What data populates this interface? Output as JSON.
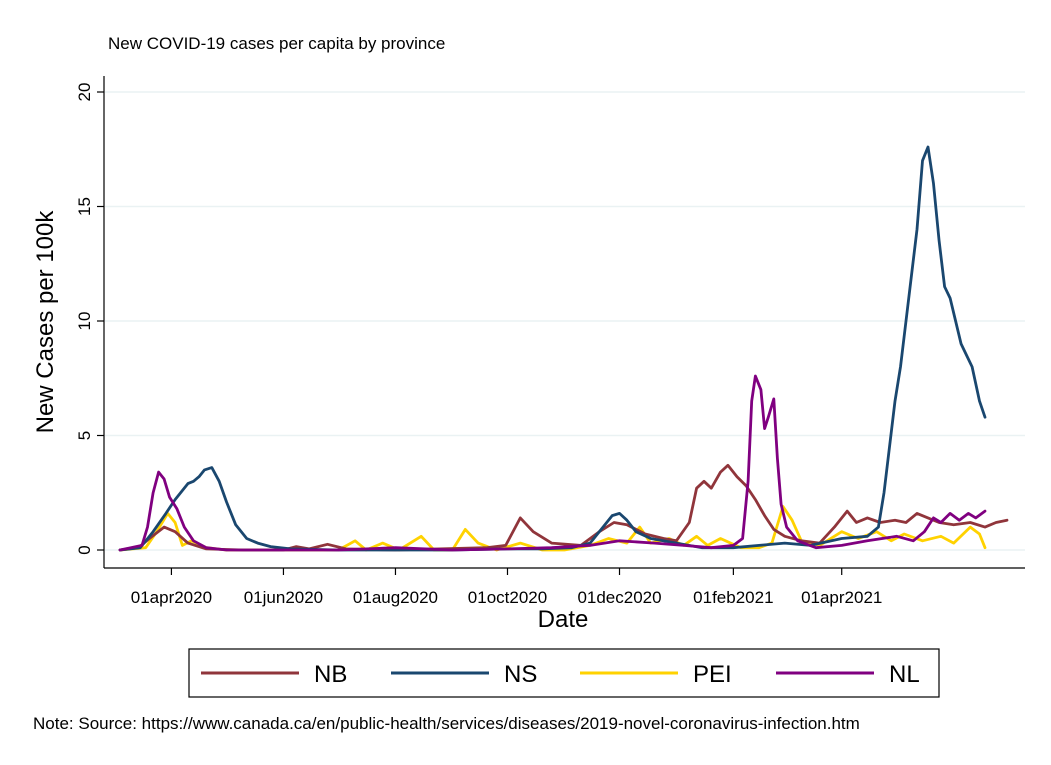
{
  "chart_data": {
    "type": "line",
    "title": "New COVID-19 cases per capita by province",
    "xlabel": "Date",
    "ylabel": "New Cases per 100k",
    "ylim": [
      0,
      20
    ],
    "y_ticks": [
      "0",
      "5",
      "10",
      "15",
      "20"
    ],
    "x_ticks": [
      "01apr2020",
      "01jun2020",
      "01aug2020",
      "01oct2020",
      "01dec2020",
      "01feb2021",
      "01apr2021"
    ],
    "x_range": [
      "2020-03-04",
      "2021-06-30"
    ],
    "grid": true,
    "legend_position": "bottom",
    "note": "Note: Source: https://www.canada.ca/en/public-health/services/diseases/2019-novel-coronavirus-infection.htm",
    "series": [
      {
        "name": "NB",
        "color": "#90353b",
        "points": [
          [
            "2020-03-04",
            0.0
          ],
          [
            "2020-03-14",
            0.1
          ],
          [
            "2020-03-20",
            0.5
          ],
          [
            "2020-03-28",
            1.0
          ],
          [
            "2020-04-03",
            0.8
          ],
          [
            "2020-04-10",
            0.3
          ],
          [
            "2020-04-20",
            0.05
          ],
          [
            "2020-05-10",
            0.0
          ],
          [
            "2020-06-01",
            0.0
          ],
          [
            "2020-06-08",
            0.15
          ],
          [
            "2020-06-15",
            0.05
          ],
          [
            "2020-06-25",
            0.25
          ],
          [
            "2020-07-05",
            0.05
          ],
          [
            "2020-08-01",
            0.0
          ],
          [
            "2020-08-25",
            0.05
          ],
          [
            "2020-09-20",
            0.1
          ],
          [
            "2020-09-30",
            0.2
          ],
          [
            "2020-10-08",
            1.4
          ],
          [
            "2020-10-15",
            0.8
          ],
          [
            "2020-10-25",
            0.3
          ],
          [
            "2020-11-10",
            0.2
          ],
          [
            "2020-11-20",
            0.8
          ],
          [
            "2020-11-28",
            1.2
          ],
          [
            "2020-12-05",
            1.1
          ],
          [
            "2020-12-15",
            0.7
          ],
          [
            "2020-12-25",
            0.5
          ],
          [
            "2021-01-01",
            0.4
          ],
          [
            "2021-01-08",
            1.2
          ],
          [
            "2021-01-12",
            2.7
          ],
          [
            "2021-01-16",
            3.0
          ],
          [
            "2021-01-20",
            2.7
          ],
          [
            "2021-01-25",
            3.4
          ],
          [
            "2021-01-29",
            3.7
          ],
          [
            "2021-02-03",
            3.2
          ],
          [
            "2021-02-08",
            2.8
          ],
          [
            "2021-02-13",
            2.2
          ],
          [
            "2021-02-18",
            1.5
          ],
          [
            "2021-02-23",
            0.9
          ],
          [
            "2021-03-01",
            0.6
          ],
          [
            "2021-03-10",
            0.4
          ],
          [
            "2021-03-20",
            0.3
          ],
          [
            "2021-03-28",
            1.0
          ],
          [
            "2021-04-04",
            1.7
          ],
          [
            "2021-04-09",
            1.2
          ],
          [
            "2021-04-15",
            1.4
          ],
          [
            "2021-04-22",
            1.2
          ],
          [
            "2021-04-30",
            1.3
          ],
          [
            "2021-05-06",
            1.2
          ],
          [
            "2021-05-12",
            1.6
          ],
          [
            "2021-05-18",
            1.4
          ],
          [
            "2021-05-24",
            1.2
          ],
          [
            "2021-06-01",
            1.1
          ],
          [
            "2021-06-10",
            1.2
          ],
          [
            "2021-06-18",
            1.0
          ],
          [
            "2021-06-24",
            1.2
          ],
          [
            "2021-06-30",
            1.3
          ]
        ]
      },
      {
        "name": "NS",
        "color": "#1a476f",
        "points": [
          [
            "2020-03-04",
            0.0
          ],
          [
            "2020-03-15",
            0.1
          ],
          [
            "2020-03-22",
            0.8
          ],
          [
            "2020-03-29",
            1.6
          ],
          [
            "2020-04-03",
            2.2
          ],
          [
            "2020-04-07",
            2.6
          ],
          [
            "2020-04-10",
            2.9
          ],
          [
            "2020-04-13",
            3.0
          ],
          [
            "2020-04-16",
            3.2
          ],
          [
            "2020-04-19",
            3.5
          ],
          [
            "2020-04-23",
            3.6
          ],
          [
            "2020-04-27",
            3.0
          ],
          [
            "2020-05-01",
            2.1
          ],
          [
            "2020-05-06",
            1.1
          ],
          [
            "2020-05-12",
            0.5
          ],
          [
            "2020-05-18",
            0.3
          ],
          [
            "2020-05-25",
            0.15
          ],
          [
            "2020-06-05",
            0.05
          ],
          [
            "2020-07-01",
            0.0
          ],
          [
            "2020-08-01",
            0.0
          ],
          [
            "2020-09-01",
            0.0
          ],
          [
            "2020-10-01",
            0.05
          ],
          [
            "2020-10-20",
            0.05
          ],
          [
            "2020-11-05",
            0.1
          ],
          [
            "2020-11-15",
            0.3
          ],
          [
            "2020-11-22",
            1.0
          ],
          [
            "2020-11-27",
            1.5
          ],
          [
            "2020-12-01",
            1.6
          ],
          [
            "2020-12-05",
            1.3
          ],
          [
            "2020-12-10",
            0.8
          ],
          [
            "2020-12-18",
            0.5
          ],
          [
            "2021-01-01",
            0.3
          ],
          [
            "2021-01-15",
            0.1
          ],
          [
            "2021-02-01",
            0.1
          ],
          [
            "2021-02-15",
            0.2
          ],
          [
            "2021-03-01",
            0.3
          ],
          [
            "2021-03-15",
            0.2
          ],
          [
            "2021-04-01",
            0.5
          ],
          [
            "2021-04-15",
            0.6
          ],
          [
            "2021-04-21",
            1.0
          ],
          [
            "2021-04-24",
            2.5
          ],
          [
            "2021-04-27",
            4.5
          ],
          [
            "2021-04-30",
            6.5
          ],
          [
            "2021-05-03",
            8.0
          ],
          [
            "2021-05-06",
            10.0
          ],
          [
            "2021-05-09",
            12.0
          ],
          [
            "2021-05-12",
            14.0
          ],
          [
            "2021-05-15",
            17.0
          ],
          [
            "2021-05-18",
            17.6
          ],
          [
            "2021-05-21",
            16.0
          ],
          [
            "2021-05-24",
            13.5
          ],
          [
            "2021-05-27",
            11.5
          ],
          [
            "2021-05-30",
            11.0
          ],
          [
            "2021-06-02",
            10.0
          ],
          [
            "2021-06-05",
            9.0
          ],
          [
            "2021-06-08",
            8.5
          ],
          [
            "2021-06-11",
            8.0
          ],
          [
            "2021-06-15",
            6.5
          ],
          [
            "2021-06-18",
            5.8
          ]
        ]
      },
      {
        "name": "PEI",
        "color": "#ffd200",
        "points": [
          [
            "2020-03-04",
            0.0
          ],
          [
            "2020-03-18",
            0.1
          ],
          [
            "2020-03-24",
            0.8
          ],
          [
            "2020-03-30",
            1.6
          ],
          [
            "2020-04-03",
            1.2
          ],
          [
            "2020-04-07",
            0.2
          ],
          [
            "2020-04-12",
            0.4
          ],
          [
            "2020-04-20",
            0.1
          ],
          [
            "2020-05-01",
            0.0
          ],
          [
            "2020-07-01",
            0.0
          ],
          [
            "2020-07-10",
            0.4
          ],
          [
            "2020-07-16",
            0.0
          ],
          [
            "2020-07-25",
            0.3
          ],
          [
            "2020-08-03",
            0.0
          ],
          [
            "2020-08-15",
            0.6
          ],
          [
            "2020-08-22",
            0.0
          ],
          [
            "2020-09-01",
            0.0
          ],
          [
            "2020-09-08",
            0.9
          ],
          [
            "2020-09-15",
            0.3
          ],
          [
            "2020-09-25",
            0.0
          ],
          [
            "2020-10-08",
            0.3
          ],
          [
            "2020-10-20",
            0.0
          ],
          [
            "2020-11-01",
            0.0
          ],
          [
            "2020-11-15",
            0.2
          ],
          [
            "2020-11-25",
            0.5
          ],
          [
            "2020-12-05",
            0.3
          ],
          [
            "2020-12-12",
            1.0
          ],
          [
            "2020-12-18",
            0.3
          ],
          [
            "2020-12-28",
            0.5
          ],
          [
            "2021-01-05",
            0.2
          ],
          [
            "2021-01-12",
            0.6
          ],
          [
            "2021-01-18",
            0.2
          ],
          [
            "2021-01-25",
            0.5
          ],
          [
            "2021-02-05",
            0.1
          ],
          [
            "2021-02-15",
            0.1
          ],
          [
            "2021-02-22",
            0.3
          ],
          [
            "2021-02-28",
            1.9
          ],
          [
            "2021-03-05",
            1.3
          ],
          [
            "2021-03-10",
            0.4
          ],
          [
            "2021-03-20",
            0.2
          ],
          [
            "2021-04-01",
            0.8
          ],
          [
            "2021-04-10",
            0.5
          ],
          [
            "2021-04-20",
            0.8
          ],
          [
            "2021-04-28",
            0.4
          ],
          [
            "2021-05-05",
            0.7
          ],
          [
            "2021-05-15",
            0.4
          ],
          [
            "2021-05-25",
            0.6
          ],
          [
            "2021-06-01",
            0.3
          ],
          [
            "2021-06-10",
            1.0
          ],
          [
            "2021-06-15",
            0.7
          ],
          [
            "2021-06-18",
            0.1
          ]
        ]
      },
      {
        "name": "NL",
        "color": "#800080",
        "points": [
          [
            "2020-03-04",
            0.0
          ],
          [
            "2020-03-16",
            0.2
          ],
          [
            "2020-03-19",
            1.0
          ],
          [
            "2020-03-22",
            2.5
          ],
          [
            "2020-03-25",
            3.4
          ],
          [
            "2020-03-28",
            3.1
          ],
          [
            "2020-03-31",
            2.3
          ],
          [
            "2020-04-04",
            1.8
          ],
          [
            "2020-04-08",
            1.0
          ],
          [
            "2020-04-13",
            0.4
          ],
          [
            "2020-04-20",
            0.1
          ],
          [
            "2020-05-01",
            0.0
          ],
          [
            "2020-07-01",
            0.0
          ],
          [
            "2020-08-01",
            0.1
          ],
          [
            "2020-09-01",
            0.0
          ],
          [
            "2020-10-01",
            0.05
          ],
          [
            "2020-10-25",
            0.1
          ],
          [
            "2020-11-15",
            0.2
          ],
          [
            "2020-12-01",
            0.4
          ],
          [
            "2020-12-20",
            0.3
          ],
          [
            "2021-01-05",
            0.2
          ],
          [
            "2021-01-20",
            0.1
          ],
          [
            "2021-02-01",
            0.2
          ],
          [
            "2021-02-06",
            0.5
          ],
          [
            "2021-02-09",
            3.0
          ],
          [
            "2021-02-11",
            6.5
          ],
          [
            "2021-02-13",
            7.6
          ],
          [
            "2021-02-16",
            7.0
          ],
          [
            "2021-02-18",
            5.3
          ],
          [
            "2021-02-20",
            5.8
          ],
          [
            "2021-02-23",
            6.6
          ],
          [
            "2021-02-25",
            4.0
          ],
          [
            "2021-02-27",
            2.0
          ],
          [
            "2021-03-02",
            1.0
          ],
          [
            "2021-03-08",
            0.4
          ],
          [
            "2021-03-18",
            0.1
          ],
          [
            "2021-04-01",
            0.2
          ],
          [
            "2021-04-15",
            0.4
          ],
          [
            "2021-05-01",
            0.6
          ],
          [
            "2021-05-10",
            0.4
          ],
          [
            "2021-05-16",
            0.8
          ],
          [
            "2021-05-21",
            1.4
          ],
          [
            "2021-05-25",
            1.2
          ],
          [
            "2021-05-30",
            1.6
          ],
          [
            "2021-06-04",
            1.3
          ],
          [
            "2021-06-09",
            1.6
          ],
          [
            "2021-06-13",
            1.4
          ],
          [
            "2021-06-18",
            1.7
          ]
        ]
      }
    ]
  }
}
